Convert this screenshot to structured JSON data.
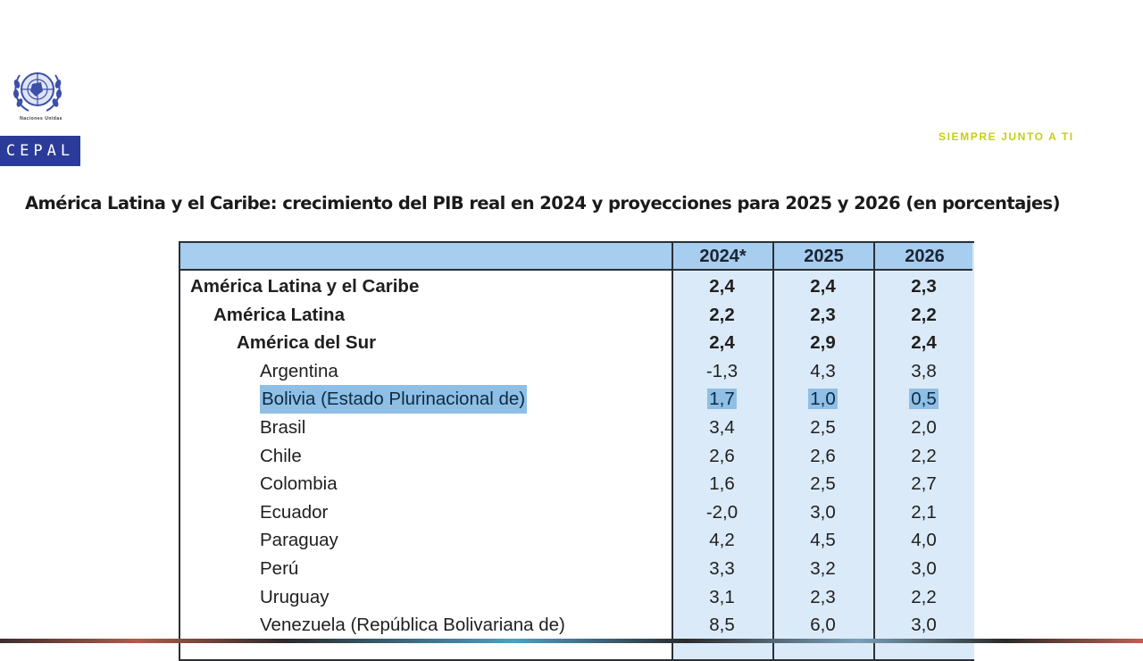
{
  "logo": {
    "emblem": "un-emblem-icon",
    "org_small_text": "Naciones Unidas",
    "org_name": "CEPAL"
  },
  "tagline": "SIEMPRE JUNTO A TI",
  "title": "América Latina y el Caribe: crecimiento del PIB real en 2024 y proyecciones para 2025 y 2026 (en porcentajes)",
  "colors": {
    "header_bg": "#a7cdef",
    "column_bg": "#dbeaf8",
    "highlight": "#8fbfe4",
    "tagline": "#c5cf16",
    "cepal_blue": "#2b3b9a"
  },
  "table": {
    "columns": [
      "2024*",
      "2025",
      "2026"
    ],
    "rows": [
      {
        "label": "América Latina y el Caribe",
        "level": 0,
        "bold": true,
        "values": [
          "2,4",
          "2,4",
          "2,3"
        ]
      },
      {
        "label": "América Latina",
        "level": 1,
        "bold": true,
        "values": [
          "2,2",
          "2,3",
          "2,2"
        ]
      },
      {
        "label": "América del Sur",
        "level": 2,
        "bold": true,
        "values": [
          "2,4",
          "2,9",
          "2,4"
        ]
      },
      {
        "label": "Argentina",
        "level": 3,
        "values": [
          "-1,3",
          "4,3",
          "3,8"
        ]
      },
      {
        "label": "Bolivia (Estado Plurinacional de)",
        "level": 3,
        "highlighted": true,
        "values": [
          "1,7",
          "1,0",
          "0,5"
        ]
      },
      {
        "label": "Brasil",
        "level": 3,
        "values": [
          "3,4",
          "2,5",
          "2,0"
        ]
      },
      {
        "label": "Chile",
        "level": 3,
        "values": [
          "2,6",
          "2,6",
          "2,2"
        ]
      },
      {
        "label": "Colombia",
        "level": 3,
        "values": [
          "1,6",
          "2,5",
          "2,7"
        ]
      },
      {
        "label": "Ecuador",
        "level": 3,
        "values": [
          "-2,0",
          "3,0",
          "2,1"
        ]
      },
      {
        "label": "Paraguay",
        "level": 3,
        "values": [
          "4,2",
          "4,5",
          "4,0"
        ]
      },
      {
        "label": "Perú",
        "level": 3,
        "values": [
          "3,3",
          "3,2",
          "3,0"
        ]
      },
      {
        "label": "Uruguay",
        "level": 3,
        "values": [
          "3,1",
          "2,3",
          "2,2"
        ]
      },
      {
        "label": "Venezuela (República Bolivariana de)",
        "level": 3,
        "values": [
          "8,5",
          "6,0",
          "3,0"
        ]
      }
    ]
  }
}
